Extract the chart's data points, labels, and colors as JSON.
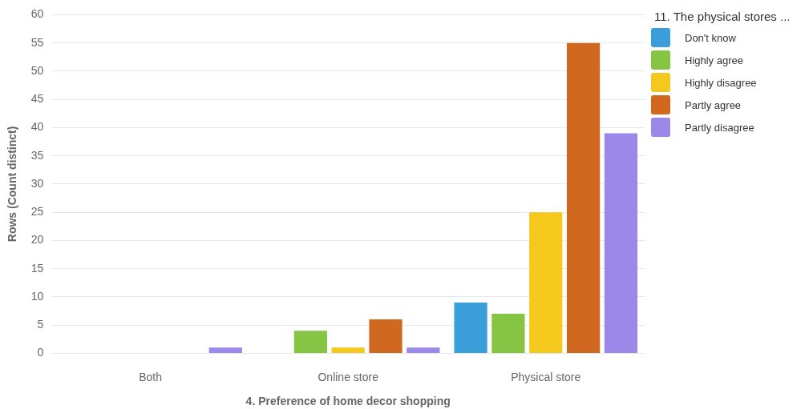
{
  "chart_data": {
    "type": "bar",
    "xlabel": "4. Preference of home decor shopping",
    "ylabel": "Rows (Count distinct)",
    "legend_title": "11. The physical stores ...",
    "categories": [
      "Both",
      "Online store",
      "Physical store"
    ],
    "series": [
      {
        "name": "Don't know",
        "color": "#3a9fd8",
        "values": [
          null,
          null,
          9
        ]
      },
      {
        "name": "Highly agree",
        "color": "#86c444",
        "values": [
          null,
          4,
          7
        ]
      },
      {
        "name": "Highly disagree",
        "color": "#f5c81e",
        "values": [
          null,
          1,
          25
        ]
      },
      {
        "name": "Partly agree",
        "color": "#d0691f",
        "values": [
          null,
          6,
          55
        ]
      },
      {
        "name": "Partly disagree",
        "color": "#9b88e8",
        "values": [
          1,
          1,
          39
        ]
      }
    ],
    "ylim": [
      0,
      60
    ],
    "yticks": [
      0,
      5,
      10,
      15,
      20,
      25,
      30,
      35,
      40,
      45,
      50,
      55,
      60
    ],
    "grid": "y",
    "legend": "top right"
  }
}
